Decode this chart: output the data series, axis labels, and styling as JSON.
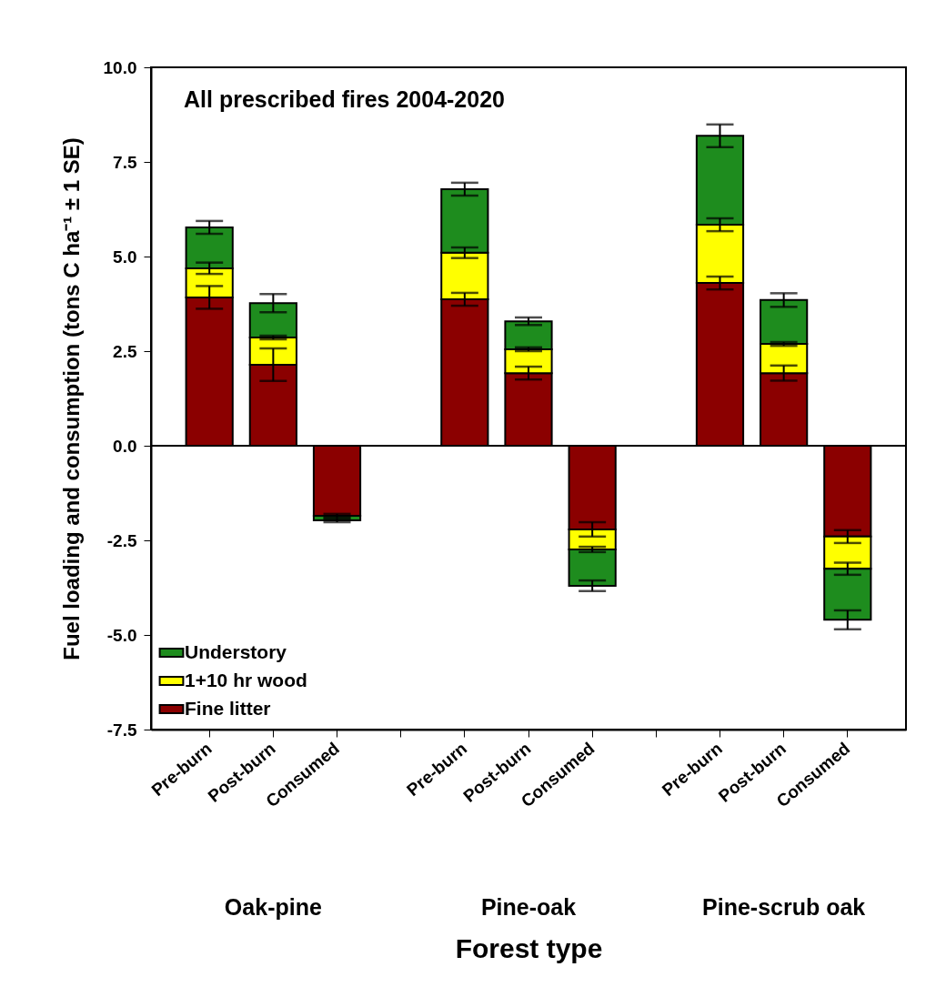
{
  "chart_data": {
    "type": "bar",
    "stacked": true,
    "xlabel": "Forest type",
    "ylabel": "Fuel loading and consumption (tons C ha⁻¹ ± 1 SE)",
    "annotations": [
      "All prescribed fires 2004-2020",
      "Oak-pine",
      "Pine-oak",
      "Pine-scrub oak"
    ],
    "categories": [
      "Pre-burn",
      "Post-burn",
      "Consumed",
      null,
      "Pre-burn",
      "Post-burn",
      "Consumed",
      null,
      "Pre-burn",
      "Post-burn",
      "Consumed"
    ],
    "series": [
      {
        "name": "Fine litter",
        "color": "#8b0000",
        "values": [
          3.92,
          2.14,
          -1.85,
          null,
          3.87,
          1.92,
          -2.21,
          null,
          4.3,
          1.92,
          -2.4
        ],
        "errors": [
          0.3,
          0.43,
          0.05,
          null,
          0.17,
          0.17,
          0.19,
          null,
          0.17,
          0.2,
          0.17
        ]
      },
      {
        "name": "1+10 hr wood",
        "color": "#ffff00",
        "values": [
          0.77,
          0.72,
          null,
          null,
          1.23,
          0.63,
          -0.53,
          null,
          1.54,
          0.77,
          -0.85
        ],
        "errors": [
          0.15,
          0.05,
          null,
          null,
          0.14,
          0.05,
          0.07,
          null,
          0.17,
          0.05,
          0.16
        ]
      },
      {
        "name": "Understory",
        "color": "#1e8c1e",
        "values": [
          1.08,
          0.91,
          -0.12,
          null,
          1.68,
          0.74,
          -0.96,
          null,
          2.35,
          1.16,
          -1.35
        ],
        "errors": [
          0.17,
          0.24,
          0.05,
          null,
          0.17,
          0.1,
          0.14,
          null,
          0.3,
          0.18,
          0.25
        ]
      }
    ],
    "ylim": [
      -7.5,
      10
    ],
    "yticks": [
      {
        "value": -7.5,
        "label": "-7.5"
      },
      {
        "value": -5,
        "label": "-5.0"
      },
      {
        "value": -2.5,
        "label": "-2.5"
      },
      {
        "value": 0,
        "label": "0.0"
      },
      {
        "value": 2.5,
        "label": "2.5"
      },
      {
        "value": 5,
        "label": "5.0"
      },
      {
        "value": 7.5,
        "label": "7.5"
      },
      {
        "value": 10,
        "label": "10.0"
      }
    ],
    "ref_lines": [
      {
        "axis": "y",
        "value": 0
      }
    ],
    "legend": "bottom left"
  }
}
